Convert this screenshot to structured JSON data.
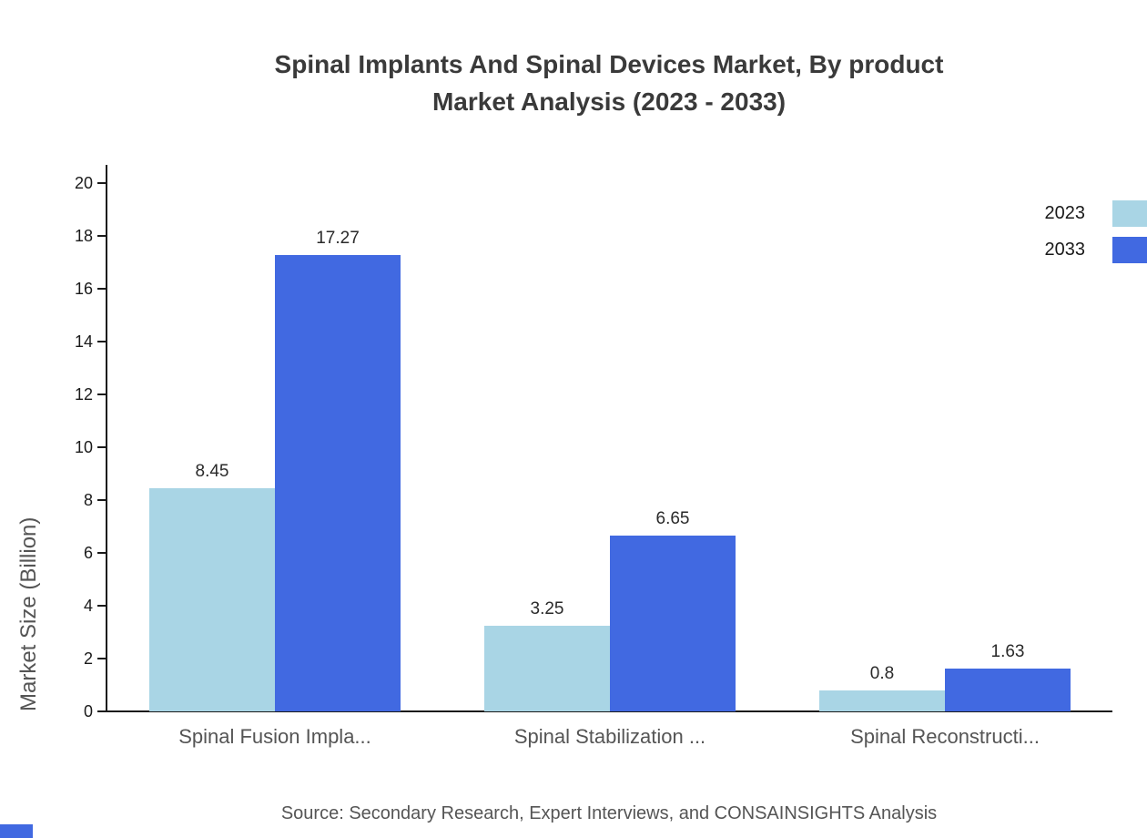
{
  "title": {
    "line1": "Spinal Implants And Spinal Devices Market, By product",
    "line2": "Market Analysis (2023 - 2033)"
  },
  "source": "Source: Secondary Research, Expert Interviews, and CONSAINSIGHTS Analysis",
  "colors": {
    "series_2023": "#a9d5e5",
    "series_2033": "#4169e1",
    "axis": "#1a1a1a",
    "title_text": "#3a3a3a",
    "muted_text": "#555555",
    "corner_accent": "#4169e1"
  },
  "legend": {
    "position": "top-right",
    "entries": [
      {
        "label": "2023",
        "color": "#a9d5e5"
      },
      {
        "label": "2033",
        "color": "#4169e1"
      }
    ]
  },
  "chart_data": {
    "type": "bar",
    "title": "Spinal Implants And Spinal Devices Market, By product Market Analysis (2023 - 2033)",
    "categories": [
      "Spinal Fusion Impla...",
      "Spinal Stabilization ...",
      "Spinal Reconstructi..."
    ],
    "series": [
      {
        "name": "2023",
        "color": "#a9d5e5",
        "values": [
          8.45,
          3.25,
          0.8
        ]
      },
      {
        "name": "2033",
        "color": "#4169e1",
        "values": [
          17.27,
          6.65,
          1.63
        ]
      }
    ],
    "xlabel": "",
    "ylabel": "Market Size (Billion)",
    "ylim": [
      0,
      20
    ],
    "y_ticks": [
      0,
      2,
      4,
      6,
      8,
      10,
      12,
      14,
      16,
      18,
      20
    ],
    "grid": false,
    "legend_position": "top-right"
  }
}
